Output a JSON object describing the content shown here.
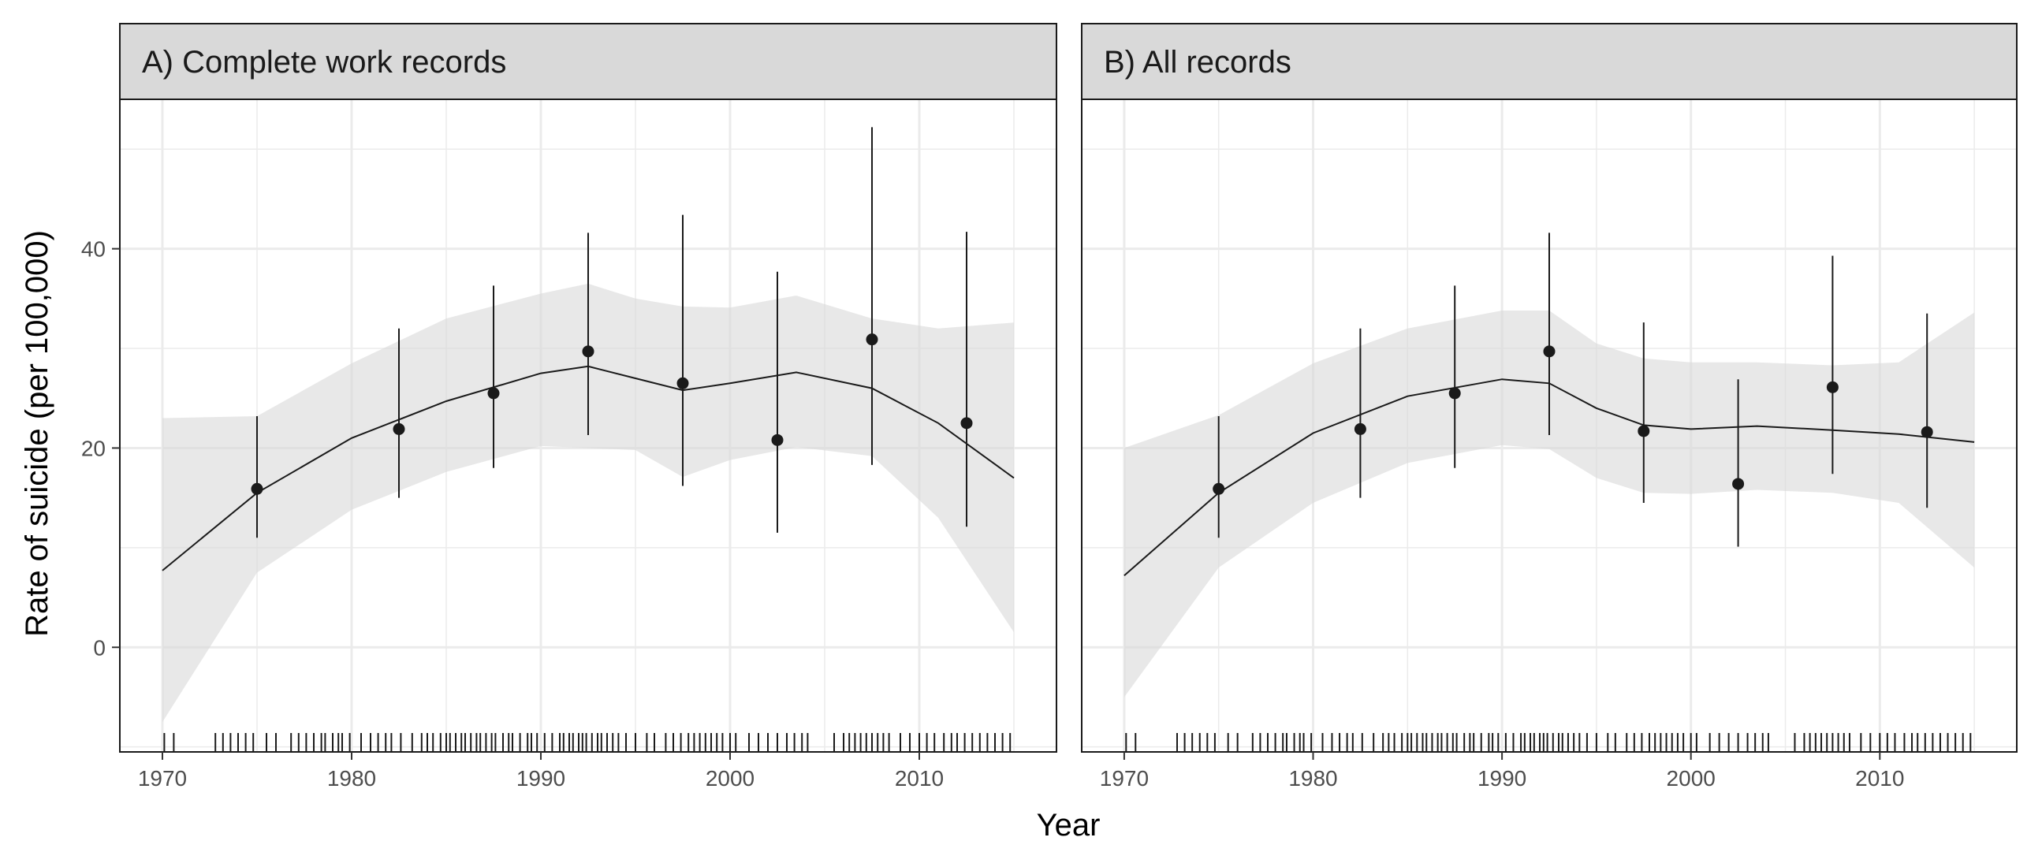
{
  "chart_data": {
    "type": "scatter",
    "xlabel": "Year",
    "ylabel": "Rate of suicide (per 100,000)",
    "xlim": [
      1967.75,
      2017.25
    ],
    "ylim": [
      -10.5,
      55
    ],
    "x_ticks": [
      "1970",
      "1980",
      "1990",
      "2000",
      "2010"
    ],
    "x_tick_values": [
      1970,
      1980,
      1990,
      2000,
      2010
    ],
    "y_ticks": [
      "0",
      "20",
      "40"
    ],
    "y_tick_values": [
      0,
      20,
      40
    ],
    "grid": true,
    "panels": [
      {
        "title": "A) Complete work records",
        "points": [
          {
            "x": 1975,
            "y": 15.9,
            "lower": 11.0,
            "upper": 23.2
          },
          {
            "x": 1982.5,
            "y": 21.9,
            "lower": 15.0,
            "upper": 32.0
          },
          {
            "x": 1987.5,
            "y": 25.5,
            "lower": 18.0,
            "upper": 36.3
          },
          {
            "x": 1992.5,
            "y": 29.7,
            "lower": 21.3,
            "upper": 41.6
          },
          {
            "x": 1997.5,
            "y": 26.5,
            "lower": 16.2,
            "upper": 43.4
          },
          {
            "x": 2002.5,
            "y": 20.8,
            "lower": 11.5,
            "upper": 37.7
          },
          {
            "x": 2007.5,
            "y": 30.9,
            "lower": 18.3,
            "upper": 52.2
          },
          {
            "x": 2012.5,
            "y": 22.5,
            "lower": 12.1,
            "upper": 41.7
          }
        ],
        "smooth": {
          "x": [
            1970,
            1975,
            1980,
            1985,
            1990,
            1992.5,
            1995,
            1997.5,
            2000,
            2003.5,
            2007.5,
            2011,
            2015
          ],
          "y": [
            7.7,
            15.5,
            21.0,
            24.7,
            27.5,
            28.2,
            27.0,
            25.8,
            26.5,
            27.6,
            26.0,
            22.5,
            17.0
          ],
          "lower": [
            -7.5,
            7.5,
            13.8,
            17.6,
            20.2,
            20.0,
            19.8,
            17.1,
            18.8,
            20.1,
            19.2,
            13.0,
            1.5
          ],
          "upper": [
            23.0,
            23.2,
            28.5,
            33.0,
            35.5,
            36.5,
            35.0,
            34.2,
            34.1,
            35.3,
            33.0,
            32.0,
            32.6
          ]
        },
        "rug": [
          1970.1,
          1970.6,
          1972.8,
          1973.2,
          1973.6,
          1974.0,
          1974.4,
          1974.8,
          1975.5,
          1976.0,
          1976.8,
          1977.2,
          1977.6,
          1978.0,
          1978.4,
          1978.6,
          1979.0,
          1979.3,
          1979.5,
          1979.9,
          1980.5,
          1981.0,
          1981.4,
          1981.8,
          1982.1,
          1982.6,
          1983.2,
          1983.7,
          1984.0,
          1984.3,
          1984.7,
          1985.0,
          1985.2,
          1985.5,
          1985.8,
          1986.0,
          1986.3,
          1986.6,
          1986.8,
          1987.1,
          1987.4,
          1987.6,
          1988.0,
          1988.3,
          1988.5,
          1988.9,
          1989.3,
          1989.5,
          1989.8,
          1990.2,
          1990.6,
          1991.0,
          1991.2,
          1991.5,
          1991.7,
          1992.0,
          1992.2,
          1992.4,
          1992.7,
          1993.0,
          1993.2,
          1993.5,
          1993.8,
          1994.1,
          1994.5,
          1995.0,
          1995.6,
          1996.0,
          1996.6,
          1997.0,
          1997.4,
          1997.8,
          1998.1,
          1998.4,
          1998.7,
          1999.0,
          1999.3,
          1999.6,
          2000.0,
          2000.3,
          2001.0,
          2001.5,
          2002.0,
          2002.5,
          2003.0,
          2003.4,
          2003.8,
          2004.1,
          2005.5,
          2006.0,
          2006.3,
          2006.6,
          2006.9,
          2007.2,
          2007.5,
          2007.8,
          2008.1,
          2008.4,
          2009.0,
          2009.5,
          2010.0,
          2010.4,
          2010.8,
          2011.3,
          2011.7,
          2012.0,
          2012.4,
          2012.8,
          2013.2,
          2013.6,
          2014.0,
          2014.4,
          2014.8
        ]
      },
      {
        "title": "B) All records",
        "points": [
          {
            "x": 1975,
            "y": 15.9,
            "lower": 11.0,
            "upper": 23.2
          },
          {
            "x": 1982.5,
            "y": 21.9,
            "lower": 15.0,
            "upper": 32.0
          },
          {
            "x": 1987.5,
            "y": 25.5,
            "lower": 18.0,
            "upper": 36.3
          },
          {
            "x": 1992.5,
            "y": 29.7,
            "lower": 21.3,
            "upper": 41.6
          },
          {
            "x": 1997.5,
            "y": 21.7,
            "lower": 14.5,
            "upper": 32.6
          },
          {
            "x": 2002.5,
            "y": 16.4,
            "lower": 10.1,
            "upper": 26.9
          },
          {
            "x": 2007.5,
            "y": 26.1,
            "lower": 17.4,
            "upper": 39.3
          },
          {
            "x": 2012.5,
            "y": 21.6,
            "lower": 14.0,
            "upper": 33.5
          }
        ],
        "smooth": {
          "x": [
            1970,
            1975,
            1980,
            1985,
            1990,
            1992.5,
            1995,
            1997.5,
            2000,
            2003.5,
            2007.5,
            2011,
            2015
          ],
          "y": [
            7.2,
            15.5,
            21.5,
            25.2,
            26.9,
            26.5,
            24.0,
            22.3,
            21.9,
            22.2,
            21.8,
            21.4,
            20.6
          ],
          "lower": [
            -5.0,
            8.0,
            14.5,
            18.5,
            20.3,
            19.9,
            17.0,
            15.5,
            15.4,
            15.8,
            15.5,
            14.5,
            8.0
          ],
          "upper": [
            20.0,
            23.3,
            28.5,
            32.0,
            33.8,
            33.8,
            30.5,
            29.0,
            28.6,
            28.6,
            28.3,
            28.6,
            33.6
          ]
        },
        "rug": [
          1970.1,
          1970.6,
          1972.8,
          1973.2,
          1973.6,
          1974.0,
          1974.4,
          1974.8,
          1975.5,
          1976.0,
          1976.8,
          1977.2,
          1977.6,
          1978.0,
          1978.4,
          1978.6,
          1979.0,
          1979.3,
          1979.5,
          1979.9,
          1980.5,
          1981.0,
          1981.4,
          1981.8,
          1982.1,
          1982.6,
          1983.2,
          1983.7,
          1984.0,
          1984.3,
          1984.7,
          1985.0,
          1985.2,
          1985.5,
          1985.8,
          1986.0,
          1986.3,
          1986.6,
          1986.8,
          1987.1,
          1987.4,
          1987.6,
          1988.0,
          1988.3,
          1988.5,
          1988.9,
          1989.3,
          1989.5,
          1989.8,
          1990.2,
          1990.6,
          1991.0,
          1991.2,
          1991.5,
          1991.7,
          1992.0,
          1992.2,
          1992.4,
          1992.7,
          1993.0,
          1993.2,
          1993.5,
          1993.8,
          1994.1,
          1994.5,
          1995.0,
          1995.6,
          1996.0,
          1996.6,
          1997.0,
          1997.4,
          1997.8,
          1998.1,
          1998.4,
          1998.7,
          1999.0,
          1999.3,
          1999.6,
          2000.0,
          2000.3,
          2001.0,
          2001.5,
          2002.0,
          2002.5,
          2003.0,
          2003.4,
          2003.8,
          2004.1,
          2005.5,
          2006.0,
          2006.3,
          2006.6,
          2006.9,
          2007.2,
          2007.5,
          2007.8,
          2008.1,
          2008.4,
          2009.0,
          2009.5,
          2010.0,
          2010.4,
          2010.8,
          2011.3,
          2011.7,
          2012.0,
          2012.4,
          2012.8,
          2013.2,
          2013.6,
          2014.0,
          2014.4,
          2014.8
        ]
      }
    ]
  },
  "colors": {
    "strip_fill": "#d9d9d9",
    "ribbon": "#ebebeb",
    "grid": "#ebebeb",
    "ink": "#1a1a1a",
    "tick_text": "#4d4d4d"
  }
}
